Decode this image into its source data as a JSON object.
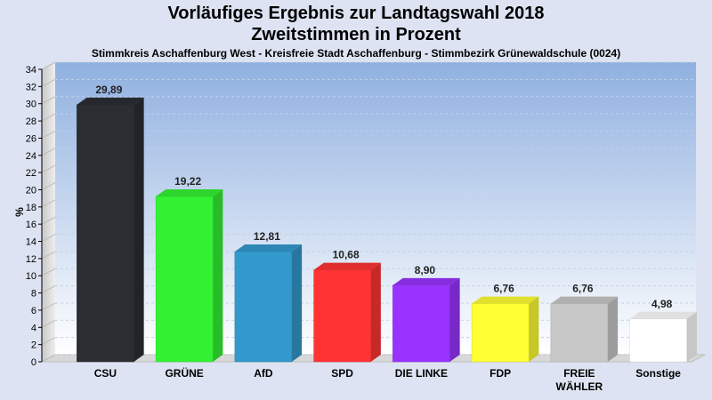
{
  "header": {
    "title_line1": "Vorläufiges Ergebnis zur Landtagswahl 2018",
    "title_line2": "Zweitstimmen in Prozent",
    "subtitle": "Stimmkreis Aschaffenburg West - Kreisfreie Stadt Aschaffenburg - Stimmbezirk Grünewaldschule (0024)"
  },
  "chart_data": {
    "type": "bar",
    "title": "Vorläufiges Ergebnis zur Landtagswahl 2018",
    "subtitle": "Zweitstimmen in Prozent",
    "ylabel": "%",
    "xlabel": "",
    "ylim": [
      0,
      34
    ],
    "ytick_step": 2,
    "grid": true,
    "categories": [
      "CSU",
      "GRÜNE",
      "AfD",
      "SPD",
      "DIE LINKE",
      "FDP",
      "FREIE WÄHLER",
      "Sonstige"
    ],
    "category_lines": [
      [
        "CSU"
      ],
      [
        "GRÜNE"
      ],
      [
        "AfD"
      ],
      [
        "SPD"
      ],
      [
        "DIE LINKE"
      ],
      [
        "FDP"
      ],
      [
        "FREIE",
        "WÄHLER"
      ],
      [
        "Sonstige"
      ]
    ],
    "values": [
      29.89,
      19.22,
      12.81,
      10.68,
      8.9,
      6.76,
      6.76,
      4.98
    ],
    "value_labels": [
      "29,89",
      "19,22",
      "12,81",
      "10,68",
      "8,90",
      "6,76",
      "6,76",
      "4,98"
    ],
    "colors": [
      "#2b2d33",
      "#33f233",
      "#3399cc",
      "#ff3333",
      "#9933ff",
      "#ffff33",
      "#c8c8c8",
      "#ffffff"
    ]
  }
}
